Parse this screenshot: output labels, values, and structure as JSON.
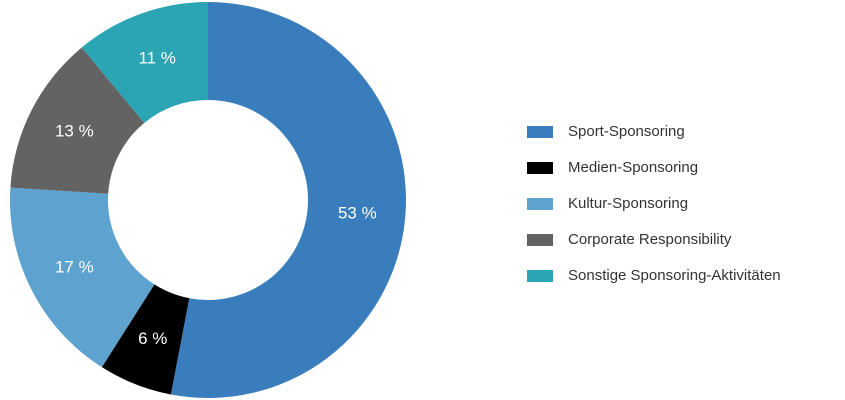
{
  "chart_data": {
    "type": "donut",
    "categories": [
      "Sport-Sponsoring",
      "Medien-Sponsoring",
      "Kultur-Sponsoring",
      "Corporate Responsibility",
      "Sonstige Sponsoring-Aktivitäten"
    ],
    "values": [
      53,
      6,
      17,
      13,
      11
    ],
    "value_labels": [
      "53 %",
      "6 %",
      "17 %",
      "13 %",
      "11 %"
    ],
    "colors": [
      "#3a7dbd",
      "#000000",
      "#5ea3cf",
      "#636363",
      "#2ba4b4"
    ],
    "legend": "right"
  }
}
